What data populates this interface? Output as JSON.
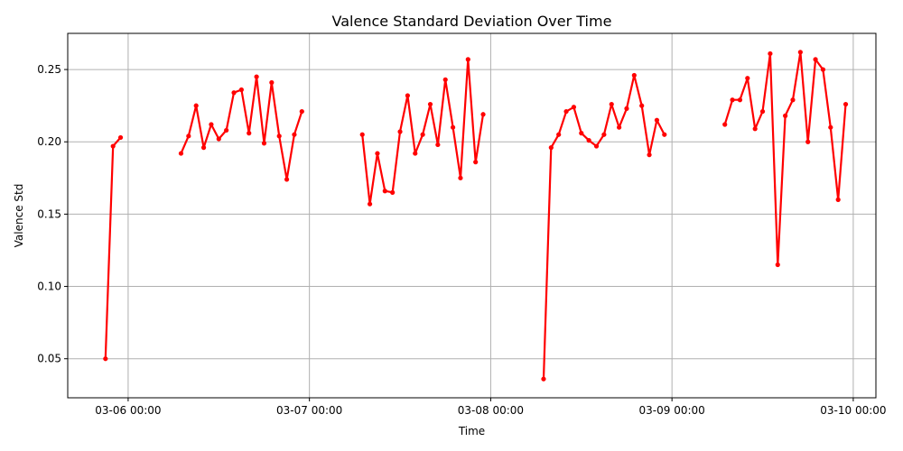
{
  "chart_data": {
    "type": "line",
    "title": "Valence Standard Deviation Over Time",
    "xlabel": "Time",
    "ylabel": "Valence Std",
    "xlim": [
      "2025-03-05 16:00",
      "2025-03-10 03:00"
    ],
    "ylim": [
      0.023,
      0.275
    ],
    "grid": true,
    "line_color": "#ff0000",
    "x_ticks": [
      {
        "value": "2025-03-06 00:00",
        "label": "03-06 00:00"
      },
      {
        "value": "2025-03-07 00:00",
        "label": "03-07 00:00"
      },
      {
        "value": "2025-03-08 00:00",
        "label": "03-08 00:00"
      },
      {
        "value": "2025-03-09 00:00",
        "label": "03-09 00:00"
      },
      {
        "value": "2025-03-10 00:00",
        "label": "03-10 00:00"
      }
    ],
    "y_ticks": [
      {
        "value": 0.05,
        "label": "0.05"
      },
      {
        "value": 0.1,
        "label": "0.10"
      },
      {
        "value": 0.15,
        "label": "0.15"
      },
      {
        "value": 0.2,
        "label": "0.20"
      },
      {
        "value": 0.25,
        "label": "0.25"
      }
    ],
    "segments": [
      {
        "x": [
          "2025-03-05 21:00",
          "2025-03-05 22:00",
          "2025-03-05 23:00"
        ],
        "y": [
          0.05,
          0.197,
          0.203
        ]
      },
      {
        "x": [
          "2025-03-06 07:00",
          "2025-03-06 08:00",
          "2025-03-06 09:00",
          "2025-03-06 10:00",
          "2025-03-06 11:00",
          "2025-03-06 12:00",
          "2025-03-06 13:00",
          "2025-03-06 14:00",
          "2025-03-06 15:00",
          "2025-03-06 16:00",
          "2025-03-06 17:00",
          "2025-03-06 18:00",
          "2025-03-06 19:00",
          "2025-03-06 20:00",
          "2025-03-06 21:00",
          "2025-03-06 22:00",
          "2025-03-06 23:00"
        ],
        "y": [
          0.192,
          0.204,
          0.225,
          0.196,
          0.212,
          0.202,
          0.208,
          0.234,
          0.236,
          0.206,
          0.245,
          0.199,
          0.241,
          0.204,
          0.174,
          0.205,
          0.221
        ]
      },
      {
        "x": [
          "2025-03-07 07:00",
          "2025-03-07 08:00",
          "2025-03-07 09:00",
          "2025-03-07 10:00",
          "2025-03-07 11:00",
          "2025-03-07 12:00",
          "2025-03-07 13:00",
          "2025-03-07 14:00",
          "2025-03-07 15:00",
          "2025-03-07 16:00",
          "2025-03-07 17:00",
          "2025-03-07 18:00",
          "2025-03-07 19:00",
          "2025-03-07 20:00",
          "2025-03-07 21:00",
          "2025-03-07 22:00",
          "2025-03-07 23:00"
        ],
        "y": [
          0.205,
          0.157,
          0.192,
          0.166,
          0.165,
          0.207,
          0.232,
          0.192,
          0.205,
          0.226,
          0.198,
          0.243,
          0.21,
          0.175,
          0.257,
          0.186,
          0.219
        ]
      },
      {
        "x": [
          "2025-03-08 07:00",
          "2025-03-08 08:00",
          "2025-03-08 09:00",
          "2025-03-08 10:00",
          "2025-03-08 11:00",
          "2025-03-08 12:00",
          "2025-03-08 13:00",
          "2025-03-08 14:00",
          "2025-03-08 15:00",
          "2025-03-08 16:00",
          "2025-03-08 17:00",
          "2025-03-08 18:00",
          "2025-03-08 19:00",
          "2025-03-08 20:00",
          "2025-03-08 21:00",
          "2025-03-08 22:00",
          "2025-03-08 23:00"
        ],
        "y": [
          0.036,
          0.196,
          0.205,
          0.221,
          0.224,
          0.206,
          0.201,
          0.197,
          0.205,
          0.226,
          0.21,
          0.223,
          0.246,
          0.225,
          0.191,
          0.215,
          0.205
        ]
      },
      {
        "x": [
          "2025-03-09 07:00",
          "2025-03-09 08:00",
          "2025-03-09 09:00",
          "2025-03-09 10:00",
          "2025-03-09 11:00",
          "2025-03-09 12:00",
          "2025-03-09 13:00",
          "2025-03-09 14:00",
          "2025-03-09 15:00",
          "2025-03-09 16:00",
          "2025-03-09 17:00",
          "2025-03-09 18:00",
          "2025-03-09 19:00",
          "2025-03-09 20:00",
          "2025-03-09 21:00",
          "2025-03-09 22:00",
          "2025-03-09 23:00"
        ],
        "y": [
          0.212,
          0.229,
          0.229,
          0.244,
          0.209,
          0.221,
          0.261,
          0.115,
          0.218,
          0.229,
          0.262,
          0.2,
          0.257,
          0.25,
          0.21,
          0.16,
          0.226
        ]
      }
    ]
  }
}
